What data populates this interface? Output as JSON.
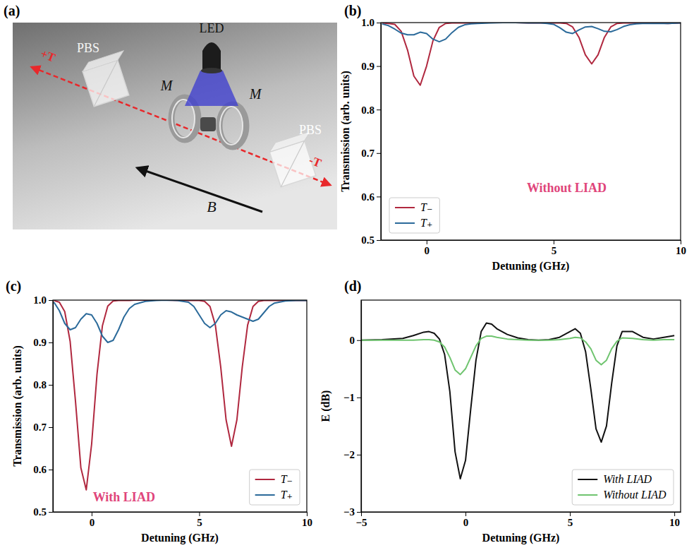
{
  "diagram": {
    "panel": "(a)",
    "labels": {
      "led": "LED",
      "pbs_left": "PBS",
      "pbs_right": "PBS",
      "magnet_left": "M",
      "magnet_right": "M",
      "field": "B",
      "forward": "+T",
      "backward": "-T"
    }
  },
  "chart_data": [
    {
      "type": "line",
      "annotations": [
        {
          "text": "(b)"
        },
        {
          "text": "Without LIAD"
        }
      ],
      "x_label": "Detuning (GHz)",
      "y_label": "Transmission (arb. units)",
      "x": [
        -1.75,
        -1.5,
        -1.25,
        -1,
        -0.75,
        -0.5,
        -0.25,
        0,
        0.25,
        0.5,
        0.75,
        1,
        1.25,
        1.5,
        1.75,
        2,
        2.5,
        3,
        3.5,
        4,
        4.5,
        4.75,
        5,
        5.25,
        5.5,
        5.75,
        6,
        6.25,
        6.5,
        6.75,
        7,
        7.25,
        7.5,
        7.75,
        8,
        8.25,
        8.5,
        9,
        9.5,
        10
      ],
      "series": [
        {
          "name": "T₋",
          "color": "#b0283f",
          "values": [
            0.999,
            0.998,
            0.996,
            0.98,
            0.937,
            0.877,
            0.856,
            0.9,
            0.958,
            0.989,
            0.998,
            0.999,
            0.999,
            0.999,
            0.999,
            1,
            1,
            1,
            1,
            0.999,
            0.999,
            0.999,
            0.999,
            0.999,
            0.998,
            0.99,
            0.966,
            0.926,
            0.905,
            0.926,
            0.966,
            0.99,
            0.998,
            0.999,
            0.999,
            0.999,
            0.999,
            0.999,
            0.998,
            0.999
          ]
        },
        {
          "name": "T₊",
          "color": "#2b6a9a",
          "values": [
            0.997,
            0.993,
            0.985,
            0.976,
            0.972,
            0.972,
            0.978,
            0.975,
            0.962,
            0.956,
            0.962,
            0.977,
            0.989,
            0.995,
            0.997,
            0.998,
            0.999,
            1,
            1,
            0.999,
            0.999,
            0.998,
            0.996,
            0.988,
            0.978,
            0.975,
            0.983,
            0.99,
            0.991,
            0.986,
            0.98,
            0.979,
            0.984,
            0.991,
            0.995,
            0.997,
            0.998,
            0.998,
            0.998,
            0.999
          ]
        }
      ],
      "xlim": [
        -1.8,
        10
      ],
      "xticks": [
        0,
        5,
        10
      ],
      "ylim": [
        0.5,
        1
      ],
      "yticks": [
        0.5,
        0.6,
        0.7,
        0.8,
        0.9,
        {
          "value": 1,
          "label": "1.0"
        }
      ],
      "legend": "lower left"
    },
    {
      "type": "line",
      "annotations": [
        {
          "text": "(c)"
        },
        {
          "text": "With LIAD"
        }
      ],
      "x_label": "Detuning (GHz)",
      "y_label": "Transmission (arb. units)",
      "x": [
        -1.75,
        -1.5,
        -1.25,
        -1,
        -0.75,
        -0.5,
        -0.25,
        0,
        0.25,
        0.5,
        0.75,
        1,
        1.25,
        1.5,
        1.75,
        2,
        2.5,
        3,
        3.5,
        4,
        4.5,
        4.75,
        5,
        5.25,
        5.5,
        5.75,
        6,
        6.25,
        6.5,
        6.75,
        7,
        7.25,
        7.5,
        7.75,
        8,
        8.25,
        8.5,
        9,
        9.5,
        10
      ],
      "series": [
        {
          "name": "T₋",
          "color": "#b0283f",
          "values": [
            0.999,
            0.995,
            0.973,
            0.903,
            0.761,
            0.604,
            0.552,
            0.66,
            0.825,
            0.939,
            0.986,
            0.998,
            0.999,
            0.999,
            0.999,
            1,
            1,
            1,
            1,
            0.999,
            0.999,
            0.999,
            0.999,
            0.997,
            0.985,
            0.941,
            0.842,
            0.717,
            0.655,
            0.717,
            0.842,
            0.941,
            0.985,
            0.997,
            0.999,
            0.999,
            0.999,
            0.999,
            0.999,
            0.999
          ]
        },
        {
          "name": "T₊",
          "color": "#2b6a9a",
          "values": [
            0.995,
            0.975,
            0.945,
            0.93,
            0.935,
            0.955,
            0.968,
            0.965,
            0.945,
            0.915,
            0.9,
            0.905,
            0.93,
            0.96,
            0.98,
            0.99,
            0.997,
            0.999,
            1,
            0.999,
            0.995,
            0.985,
            0.965,
            0.945,
            0.935,
            0.945,
            0.965,
            0.975,
            0.972,
            0.965,
            0.96,
            0.955,
            0.95,
            0.955,
            0.97,
            0.985,
            0.993,
            0.998,
            0.999,
            0.999
          ]
        }
      ],
      "xlim": [
        -1.8,
        10
      ],
      "xticks": [
        0,
        5,
        10
      ],
      "ylim": [
        0.5,
        1
      ],
      "yticks": [
        0.5,
        0.6,
        0.7,
        0.8,
        0.9,
        {
          "value": 1,
          "label": "1.0"
        }
      ],
      "legend": "lower right"
    },
    {
      "type": "line",
      "annotations": [
        {
          "text": "(d)"
        }
      ],
      "x_label": "Detuning (GHz)",
      "y_label": "E (dB)",
      "x": [
        -5,
        -4,
        -3,
        -2.5,
        -2,
        -1.75,
        -1.5,
        -1.25,
        -1,
        -0.75,
        -0.5,
        -0.25,
        0,
        0.25,
        0.5,
        0.75,
        1,
        1.25,
        1.5,
        2,
        2.5,
        3,
        3.5,
        4,
        4.5,
        5,
        5.25,
        5.5,
        5.75,
        6,
        6.25,
        6.5,
        6.75,
        7,
        7.25,
        7.5,
        8,
        8.5,
        9,
        9.5,
        10
      ],
      "series": [
        {
          "name": "With LIAD",
          "color": "#111111",
          "values": [
            0,
            0.01,
            0.03,
            0.08,
            0.14,
            0.15,
            0.12,
            0.02,
            -0.25,
            -0.9,
            -1.95,
            -2.42,
            -2.1,
            -1.2,
            -0.35,
            0.15,
            0.3,
            0.28,
            0.2,
            0.1,
            0.04,
            0.01,
            0,
            0.01,
            0.05,
            0.15,
            0.2,
            0.12,
            -0.2,
            -0.85,
            -1.55,
            -1.78,
            -1.5,
            -0.75,
            -0.1,
            0.15,
            0.15,
            0.05,
            0.02,
            0.05,
            0.08
          ]
        },
        {
          "name": "Without LIAD",
          "color": "#6fc46f",
          "values": [
            0,
            0,
            0,
            0,
            0.01,
            0.01,
            0,
            -0.03,
            -0.12,
            -0.3,
            -0.52,
            -0.6,
            -0.5,
            -0.3,
            -0.1,
            0.03,
            0.07,
            0.07,
            0.05,
            0.02,
            0.01,
            0,
            0,
            0,
            0.01,
            0.03,
            0.05,
            0.04,
            -0.03,
            -0.15,
            -0.35,
            -0.43,
            -0.35,
            -0.15,
            -0.02,
            0.04,
            0.03,
            0.01,
            0,
            0.01,
            0.01
          ]
        }
      ],
      "xlim": [
        -5,
        10.3
      ],
      "xticks": [
        {
          "value": -5,
          "label": "−5"
        },
        0,
        5,
        10
      ],
      "ylim": [
        -3,
        0.7
      ],
      "yticks": [
        {
          "value": -3,
          "label": "−3"
        },
        {
          "value": -2,
          "label": "−2"
        },
        {
          "value": -1,
          "label": "−1"
        },
        0
      ],
      "legend": "lower right"
    }
  ]
}
